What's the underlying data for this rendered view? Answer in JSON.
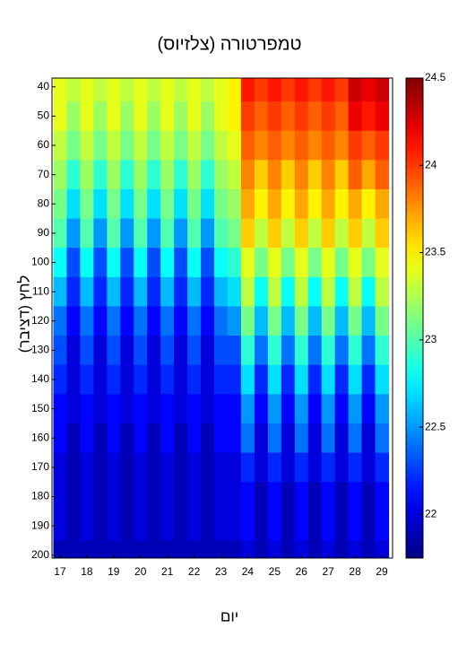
{
  "chart_data": {
    "type": "heatmap",
    "title": "טמפרטורה (צלזיוס)",
    "xlabel": "יום",
    "ylabel": "לחץ (דציבר)",
    "colormap": "jet",
    "x": [
      17,
      17.5,
      18,
      18.5,
      19,
      19.5,
      20,
      20.5,
      21,
      21.5,
      22,
      22.5,
      23,
      23.5,
      24,
      24.5,
      25,
      25.5,
      26,
      26.5,
      27,
      27.5,
      28,
      28.5,
      29
    ],
    "y": [
      40,
      50,
      60,
      70,
      80,
      90,
      100,
      110,
      120,
      130,
      140,
      150,
      160,
      170,
      180,
      190,
      200
    ],
    "z": [
      [
        23.4,
        23.4,
        23.3,
        23.2,
        23.1,
        23.0,
        22.8,
        22.6,
        22.4,
        22.3,
        22.2,
        22.1,
        22.1,
        22.0,
        22.0,
        22.0,
        21.9
      ],
      [
        23.3,
        23.2,
        23.1,
        22.9,
        22.7,
        22.5,
        22.3,
        22.2,
        22.1,
        22.0,
        22.0,
        22.0,
        21.9,
        21.9,
        21.9,
        21.9,
        21.9
      ],
      [
        23.4,
        23.4,
        23.3,
        23.2,
        23.1,
        23.0,
        22.8,
        22.6,
        22.4,
        22.3,
        22.2,
        22.1,
        22.1,
        22.0,
        22.0,
        22.0,
        21.9
      ],
      [
        23.3,
        23.2,
        23.1,
        22.9,
        22.7,
        22.5,
        22.3,
        22.2,
        22.1,
        22.0,
        22.0,
        22.0,
        21.9,
        21.9,
        21.9,
        21.9,
        21.9
      ],
      [
        23.4,
        23.4,
        23.3,
        23.2,
        23.1,
        23.0,
        22.8,
        22.6,
        22.4,
        22.3,
        22.2,
        22.1,
        22.1,
        22.0,
        22.0,
        22.0,
        21.9
      ],
      [
        23.3,
        23.2,
        23.1,
        22.9,
        22.7,
        22.5,
        22.3,
        22.2,
        22.1,
        22.0,
        22.0,
        22.0,
        21.9,
        21.9,
        21.9,
        21.9,
        21.9
      ],
      [
        23.4,
        23.4,
        23.3,
        23.2,
        23.1,
        23.0,
        22.8,
        22.6,
        22.4,
        22.3,
        22.2,
        22.1,
        22.1,
        22.0,
        22.0,
        22.0,
        21.9
      ],
      [
        23.3,
        23.2,
        23.1,
        22.9,
        22.7,
        22.5,
        22.3,
        22.2,
        22.1,
        22.0,
        22.0,
        22.0,
        21.9,
        21.9,
        21.9,
        21.9,
        21.9
      ],
      [
        23.4,
        23.4,
        23.3,
        23.2,
        23.1,
        23.0,
        22.8,
        22.6,
        22.4,
        22.3,
        22.2,
        22.1,
        22.1,
        22.0,
        22.0,
        22.0,
        21.9
      ],
      [
        23.3,
        23.2,
        23.1,
        22.9,
        22.7,
        22.5,
        22.3,
        22.2,
        22.1,
        22.0,
        22.0,
        22.0,
        21.9,
        21.9,
        21.9,
        21.9,
        21.9
      ],
      [
        23.4,
        23.4,
        23.3,
        23.2,
        23.1,
        23.0,
        22.8,
        22.6,
        22.4,
        22.3,
        22.2,
        22.1,
        22.1,
        22.0,
        22.0,
        22.0,
        21.9
      ],
      [
        23.3,
        23.2,
        23.1,
        22.9,
        22.7,
        22.5,
        22.3,
        22.2,
        22.1,
        22.0,
        22.0,
        22.0,
        21.9,
        21.9,
        21.9,
        21.9,
        21.9
      ],
      [
        23.4,
        23.4,
        23.3,
        23.2,
        23.1,
        23.0,
        22.8,
        22.6,
        22.4,
        22.3,
        22.2,
        22.1,
        22.1,
        22.0,
        22.0,
        22.0,
        21.9
      ],
      [
        23.5,
        23.5,
        23.4,
        23.3,
        23.2,
        23.1,
        22.9,
        22.7,
        22.5,
        22.3,
        22.2,
        22.1,
        22.1,
        22.0,
        22.0,
        22.0,
        21.9
      ],
      [
        24.1,
        24.0,
        23.9,
        23.8,
        23.7,
        23.6,
        23.4,
        23.3,
        23.1,
        22.9,
        22.7,
        22.5,
        22.4,
        22.2,
        22.1,
        22.1,
        22.0
      ],
      [
        24.0,
        23.9,
        23.8,
        23.6,
        23.5,
        23.3,
        23.1,
        22.8,
        22.6,
        22.4,
        22.2,
        22.1,
        22.0,
        22.0,
        21.9,
        21.9,
        21.9
      ],
      [
        24.1,
        24.0,
        23.9,
        23.8,
        23.7,
        23.6,
        23.4,
        23.3,
        23.1,
        22.9,
        22.7,
        22.5,
        22.4,
        22.2,
        22.1,
        22.1,
        22.0
      ],
      [
        24.0,
        23.9,
        23.8,
        23.6,
        23.5,
        23.3,
        23.1,
        22.8,
        22.6,
        22.4,
        22.2,
        22.1,
        22.0,
        22.0,
        21.9,
        21.9,
        21.9
      ],
      [
        24.1,
        24.0,
        23.9,
        23.8,
        23.7,
        23.6,
        23.4,
        23.3,
        23.1,
        22.9,
        22.7,
        22.5,
        22.4,
        22.2,
        22.1,
        22.1,
        22.0
      ],
      [
        24.0,
        23.9,
        23.8,
        23.6,
        23.5,
        23.3,
        23.1,
        22.8,
        22.6,
        22.4,
        22.2,
        22.1,
        22.0,
        22.0,
        21.9,
        21.9,
        21.9
      ],
      [
        24.1,
        24.0,
        23.9,
        23.8,
        23.7,
        23.6,
        23.4,
        23.3,
        23.1,
        22.9,
        22.7,
        22.5,
        22.4,
        22.2,
        22.1,
        22.1,
        22.0
      ],
      [
        24.0,
        23.9,
        23.8,
        23.6,
        23.5,
        23.3,
        23.1,
        22.8,
        22.6,
        22.4,
        22.2,
        22.1,
        22.0,
        22.0,
        21.9,
        21.9,
        21.9
      ],
      [
        24.3,
        24.2,
        24.0,
        23.9,
        23.7,
        23.6,
        23.4,
        23.3,
        23.1,
        22.9,
        22.7,
        22.5,
        22.4,
        22.2,
        22.1,
        22.1,
        22.0
      ],
      [
        24.2,
        24.1,
        23.9,
        23.7,
        23.5,
        23.3,
        23.1,
        22.8,
        22.6,
        22.4,
        22.2,
        22.1,
        22.0,
        22.0,
        21.9,
        21.9,
        21.9
      ],
      [
        24.3,
        24.2,
        24.0,
        23.9,
        23.7,
        23.6,
        23.4,
        23.3,
        23.1,
        22.9,
        22.7,
        22.5,
        22.4,
        22.2,
        22.1,
        22.1,
        22.0
      ]
    ],
    "xlim": [
      16.7,
      29.4
    ],
    "xticks": [
      17,
      18,
      19,
      20,
      21,
      22,
      23,
      24,
      25,
      26,
      27,
      28,
      29
    ],
    "ylim": [
      201,
      37
    ],
    "yticks": [
      40,
      50,
      60,
      70,
      80,
      90,
      100,
      110,
      120,
      130,
      140,
      150,
      160,
      170,
      180,
      190,
      200
    ],
    "zlim": [
      21.75,
      24.5
    ],
    "zticks": [
      22,
      22.5,
      23,
      23.5,
      24,
      24.5
    ]
  }
}
